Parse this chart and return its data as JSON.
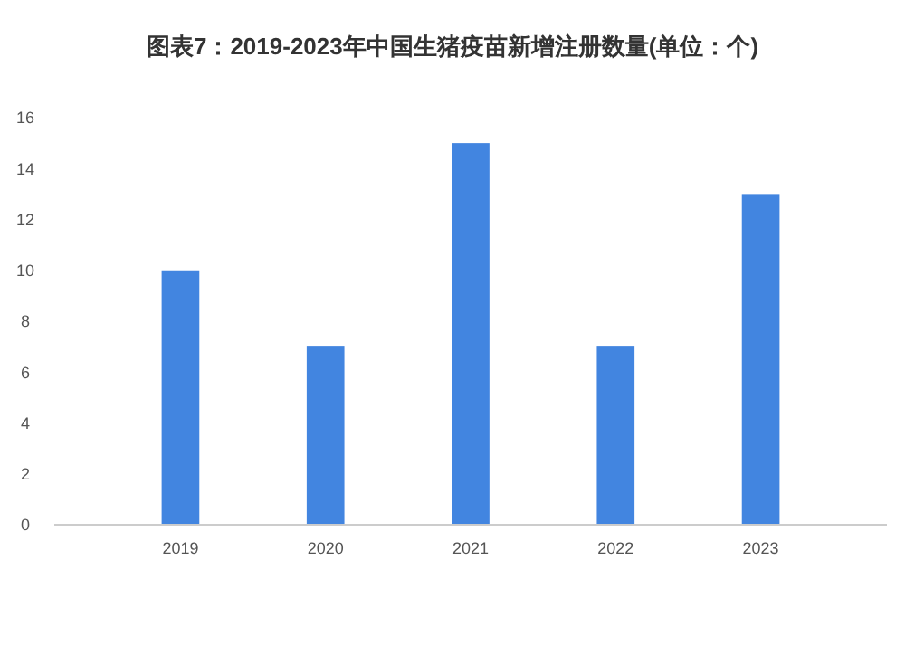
{
  "chart_data": {
    "type": "bar",
    "title": "图表7：2019-2023年中国生猪疫苗新增注册数量(单位：个)",
    "categories": [
      "2019",
      "2020",
      "2021",
      "2022",
      "2023"
    ],
    "values": [
      10,
      7,
      15,
      7,
      13
    ],
    "color": "#4285e0",
    "ylim": [
      0,
      16
    ],
    "yticks": [
      0,
      2,
      4,
      6,
      8,
      10,
      12,
      14,
      16
    ],
    "grid": false
  }
}
